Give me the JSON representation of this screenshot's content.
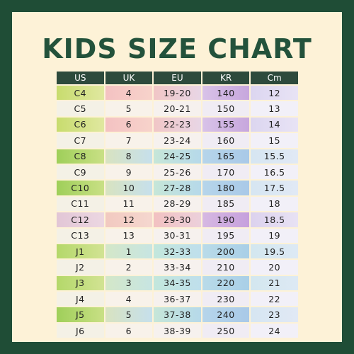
{
  "title": "KIDS SIZE CHART",
  "table": {
    "headers": [
      "US",
      "UK",
      "EU",
      "KR",
      "Cm"
    ],
    "rows": [
      [
        "C4",
        "4",
        "19-20",
        "140",
        "12"
      ],
      [
        "C5",
        "5",
        "20-21",
        "150",
        "13"
      ],
      [
        "C6",
        "6",
        "22-23",
        "155",
        "14"
      ],
      [
        "C7",
        "7",
        "23-24",
        "160",
        "15"
      ],
      [
        "C8",
        "8",
        "24-25",
        "165",
        "15.5"
      ],
      [
        "C9",
        "9",
        "25-26",
        "170",
        "16.5"
      ],
      [
        "C10",
        "10",
        "27-28",
        "180",
        "17.5"
      ],
      [
        "C11",
        "11",
        "28-29",
        "185",
        "18"
      ],
      [
        "C12",
        "12",
        "29-30",
        "190",
        "18.5"
      ],
      [
        "C13",
        "13",
        "30-31",
        "195",
        "19"
      ],
      [
        "J1",
        "1",
        "32-33",
        "200",
        "19.5"
      ],
      [
        "J2",
        "2",
        "33-34",
        "210",
        "20"
      ],
      [
        "J3",
        "3",
        "34-35",
        "220",
        "21"
      ],
      [
        "J4",
        "4",
        "36-37",
        "230",
        "22"
      ],
      [
        "J5",
        "5",
        "37-38",
        "240",
        "23"
      ],
      [
        "J6",
        "6",
        "38-39",
        "250",
        "24"
      ]
    ]
  },
  "colors": {
    "frame": "#1f4d36",
    "background": "#fdf2d7",
    "title": "#23523b",
    "header": "#2d4a3c"
  }
}
